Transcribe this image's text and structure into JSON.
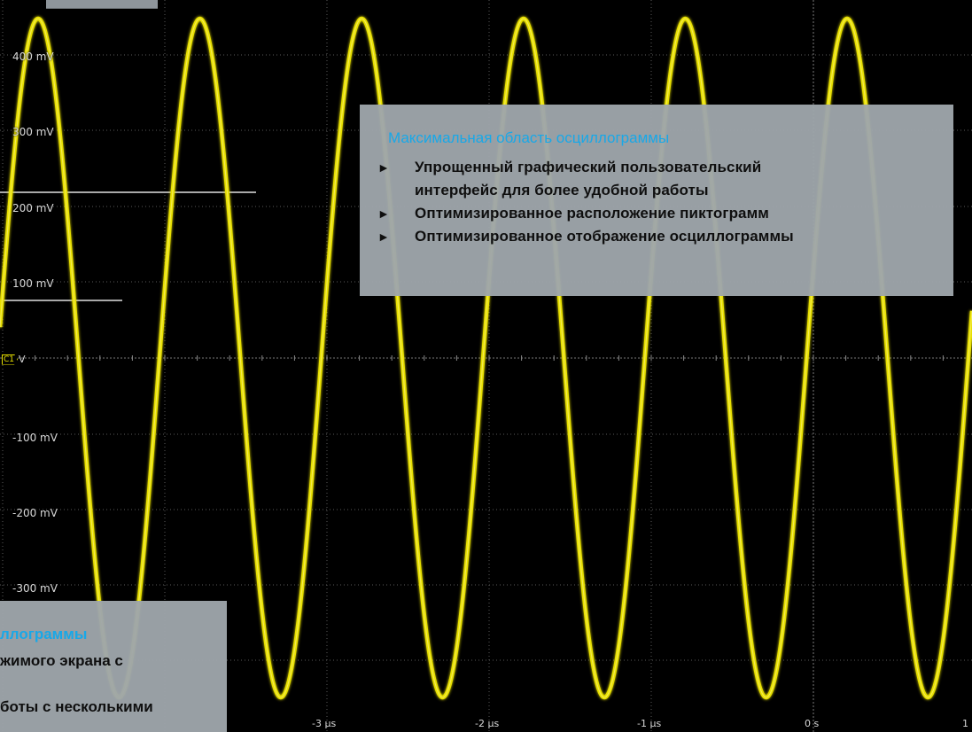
{
  "screen": {
    "channel_tag": "C1",
    "channel_unit": "V",
    "trace_color": "#e8e000",
    "grid_color": "#5a5a5a",
    "y_axis_labels": [
      "400 mV",
      "300 mV",
      "200 mV",
      "100 mV",
      "-100 mV",
      "-200 mV",
      "-300 mV"
    ],
    "x_axis_labels": [
      "-3 µs",
      "-2 µs",
      "-1 µs",
      "0 s",
      "1"
    ]
  },
  "callout_main": {
    "title": "Максимальная область осциллограммы",
    "bullets": [
      "Упрощенный графический пользовательский\nинтерфейс для более удобной работы",
      "Оптимизированное расположение пиктограмм",
      "Оптимизированное отображение осциллограммы"
    ]
  },
  "callout_bottom_left": {
    "title_fragment": "ллограммы",
    "line1_fragment": "жимого экрана с",
    "line2_fragment": "боты с несколькими"
  }
}
